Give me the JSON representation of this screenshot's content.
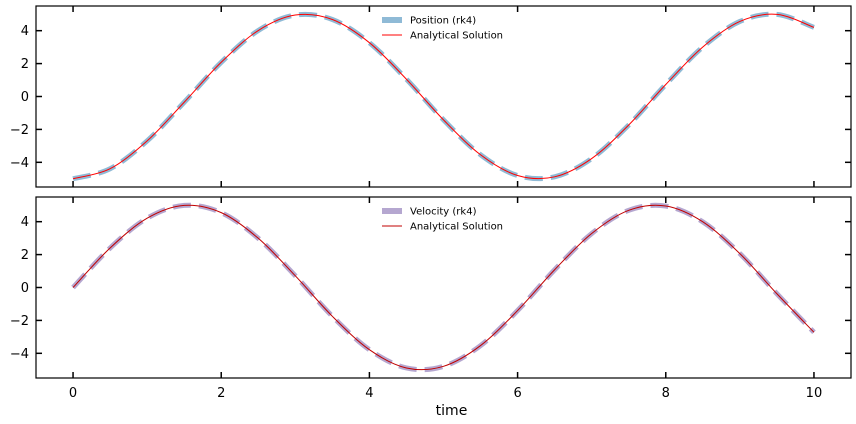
{
  "chart_data": [
    {
      "type": "line",
      "panel": "top",
      "xlabel": "",
      "ylabel": "",
      "xlim": [
        -0.5,
        10.5
      ],
      "ylim": [
        -5.5,
        5.5
      ],
      "xticks": [
        0,
        2,
        4,
        6,
        8,
        10
      ],
      "yticks": [
        -4,
        -2,
        0,
        2,
        4
      ],
      "legend": "top-center",
      "grid": false,
      "series": [
        {
          "name": "Position (rk4)",
          "color": "#8fbad6",
          "style": "thick-dashed",
          "x": [
            0,
            0.5,
            1,
            1.5,
            2,
            2.5,
            3,
            3.5,
            4,
            4.5,
            5,
            5.5,
            6,
            6.5,
            7,
            7.5,
            8,
            8.5,
            9,
            9.5,
            10
          ],
          "y": [
            -5.0,
            -4.39,
            -2.7,
            -0.35,
            2.08,
            4.01,
            4.95,
            4.68,
            3.27,
            1.05,
            -1.42,
            -3.54,
            -4.8,
            -4.88,
            -3.77,
            -1.73,
            0.73,
            3.01,
            4.56,
            4.99,
            4.2
          ]
        },
        {
          "name": "Analytical Solution",
          "color": "#ff0000",
          "style": "thin-solid",
          "x": [
            0,
            0.5,
            1,
            1.5,
            2,
            2.5,
            3,
            3.5,
            4,
            4.5,
            5,
            5.5,
            6,
            6.5,
            7,
            7.5,
            8,
            8.5,
            9,
            9.5,
            10
          ],
          "y": [
            -5.0,
            -4.39,
            -2.7,
            -0.35,
            2.08,
            4.01,
            4.95,
            4.68,
            3.27,
            1.05,
            -1.42,
            -3.54,
            -4.8,
            -4.88,
            -3.77,
            -1.73,
            0.73,
            3.01,
            4.56,
            4.99,
            4.2
          ]
        }
      ]
    },
    {
      "type": "line",
      "panel": "bottom",
      "xlabel": "time",
      "ylabel": "",
      "xlim": [
        -0.5,
        10.5
      ],
      "ylim": [
        -5.5,
        5.5
      ],
      "xticks": [
        0,
        2,
        4,
        6,
        8,
        10
      ],
      "yticks": [
        -4,
        -2,
        0,
        2,
        4
      ],
      "legend": "top-center",
      "grid": false,
      "series": [
        {
          "name": "Velocity (rk4)",
          "color": "#b5a7d0",
          "style": "thick-dashed",
          "x": [
            0,
            0.5,
            1,
            1.5,
            2,
            2.5,
            3,
            3.5,
            4,
            4.5,
            5,
            5.5,
            6,
            6.5,
            7,
            7.5,
            8,
            8.5,
            9,
            9.5,
            10
          ],
          "y": [
            0.0,
            2.4,
            4.21,
            4.99,
            4.55,
            2.99,
            0.71,
            -1.75,
            -3.78,
            -4.89,
            -4.79,
            -3.53,
            -1.4,
            1.08,
            3.28,
            4.69,
            4.95,
            3.99,
            2.06,
            -0.38,
            -2.72
          ]
        },
        {
          "name": "Analytical Solution",
          "color": "#c00000",
          "style": "thin-solid",
          "x": [
            0,
            0.5,
            1,
            1.5,
            2,
            2.5,
            3,
            3.5,
            4,
            4.5,
            5,
            5.5,
            6,
            6.5,
            7,
            7.5,
            8,
            8.5,
            9,
            9.5,
            10
          ],
          "y": [
            0.0,
            2.4,
            4.21,
            4.99,
            4.55,
            2.99,
            0.71,
            -1.75,
            -3.78,
            -4.89,
            -4.79,
            -3.53,
            -1.4,
            1.08,
            3.28,
            4.69,
            4.95,
            3.99,
            2.06,
            -0.38,
            -2.72
          ]
        }
      ]
    }
  ]
}
